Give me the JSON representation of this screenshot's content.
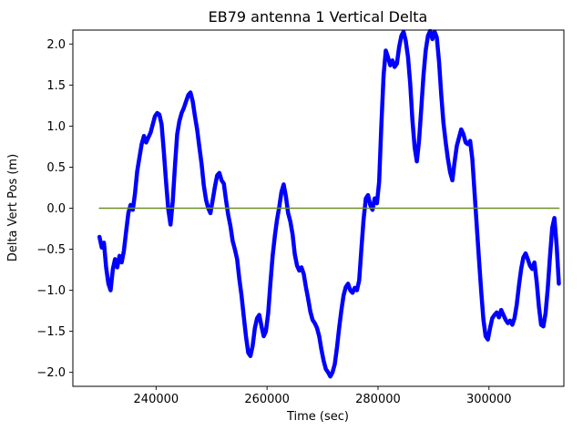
{
  "figure": {
    "background": "#ffffff"
  },
  "chart_data": {
    "type": "line",
    "title": "EB79 antenna 1 Vertical Delta",
    "xlabel": "Time (sec)",
    "ylabel": "Delta Vert Pos (m)",
    "grid": false,
    "legend_visible": false,
    "x_axis": {
      "lim": [
        225000,
        313500
      ],
      "ticks": [
        {
          "v": 240000,
          "label": "240000"
        },
        {
          "v": 260000,
          "label": "260000"
        },
        {
          "v": 280000,
          "label": "280000"
        },
        {
          "v": 300000,
          "label": "300000"
        }
      ]
    },
    "y_axis": {
      "lim": [
        -2.17,
        2.17
      ],
      "ticks": [
        {
          "v": -2.0,
          "label": "−2.0"
        },
        {
          "v": -1.5,
          "label": "−1.5"
        },
        {
          "v": -1.0,
          "label": "−1.0"
        },
        {
          "v": -0.5,
          "label": "−0.5"
        },
        {
          "v": 0.0,
          "label": "0.0"
        },
        {
          "v": 0.5,
          "label": "0.5"
        },
        {
          "v": 1.0,
          "label": "1.0"
        },
        {
          "v": 1.5,
          "label": "1.5"
        },
        {
          "v": 2.0,
          "label": "2.0"
        }
      ]
    },
    "series": [
      {
        "name": "antenna-1-vertical-delta",
        "color": "#0000ff",
        "linewidth": 4.5,
        "points": [
          [
            229800,
            -0.35
          ],
          [
            230200,
            -0.48
          ],
          [
            230600,
            -0.42
          ],
          [
            231000,
            -0.72
          ],
          [
            231400,
            -0.92
          ],
          [
            231800,
            -1.0
          ],
          [
            232200,
            -0.74
          ],
          [
            232600,
            -0.62
          ],
          [
            233000,
            -0.72
          ],
          [
            233400,
            -0.58
          ],
          [
            233800,
            -0.66
          ],
          [
            234200,
            -0.52
          ],
          [
            234600,
            -0.28
          ],
          [
            235000,
            -0.06
          ],
          [
            235400,
            0.04
          ],
          [
            235800,
            -0.02
          ],
          [
            236200,
            0.18
          ],
          [
            236600,
            0.45
          ],
          [
            237000,
            0.62
          ],
          [
            237400,
            0.78
          ],
          [
            237800,
            0.88
          ],
          [
            238200,
            0.8
          ],
          [
            238600,
            0.86
          ],
          [
            239000,
            0.92
          ],
          [
            239400,
            1.02
          ],
          [
            239800,
            1.12
          ],
          [
            240200,
            1.16
          ],
          [
            240600,
            1.14
          ],
          [
            241000,
            1.02
          ],
          [
            241400,
            0.68
          ],
          [
            241800,
            0.32
          ],
          [
            242200,
            -0.02
          ],
          [
            242600,
            -0.2
          ],
          [
            243000,
            0.08
          ],
          [
            243400,
            0.52
          ],
          [
            243800,
            0.9
          ],
          [
            244200,
            1.06
          ],
          [
            244600,
            1.16
          ],
          [
            245000,
            1.22
          ],
          [
            245400,
            1.3
          ],
          [
            245800,
            1.38
          ],
          [
            246200,
            1.41
          ],
          [
            246600,
            1.3
          ],
          [
            247000,
            1.12
          ],
          [
            247400,
            0.96
          ],
          [
            247800,
            0.74
          ],
          [
            248200,
            0.54
          ],
          [
            248600,
            0.28
          ],
          [
            249000,
            0.1
          ],
          [
            249400,
            0.0
          ],
          [
            249800,
            -0.06
          ],
          [
            250200,
            0.1
          ],
          [
            250600,
            0.26
          ],
          [
            251000,
            0.4
          ],
          [
            251400,
            0.43
          ],
          [
            251800,
            0.34
          ],
          [
            252200,
            0.3
          ],
          [
            252600,
            0.1
          ],
          [
            253000,
            -0.08
          ],
          [
            253400,
            -0.22
          ],
          [
            253800,
            -0.4
          ],
          [
            254200,
            -0.5
          ],
          [
            254600,
            -0.62
          ],
          [
            255000,
            -0.86
          ],
          [
            255400,
            -1.06
          ],
          [
            255800,
            -1.32
          ],
          [
            256200,
            -1.56
          ],
          [
            256600,
            -1.76
          ],
          [
            257000,
            -1.8
          ],
          [
            257400,
            -1.68
          ],
          [
            257800,
            -1.46
          ],
          [
            258200,
            -1.34
          ],
          [
            258600,
            -1.3
          ],
          [
            259000,
            -1.44
          ],
          [
            259400,
            -1.56
          ],
          [
            259800,
            -1.5
          ],
          [
            260200,
            -1.28
          ],
          [
            260600,
            -0.92
          ],
          [
            261000,
            -0.58
          ],
          [
            261400,
            -0.34
          ],
          [
            261800,
            -0.14
          ],
          [
            262200,
            0.02
          ],
          [
            262600,
            0.2
          ],
          [
            263000,
            0.29
          ],
          [
            263400,
            0.14
          ],
          [
            263800,
            -0.06
          ],
          [
            264200,
            -0.16
          ],
          [
            264600,
            -0.32
          ],
          [
            265000,
            -0.56
          ],
          [
            265400,
            -0.7
          ],
          [
            265800,
            -0.76
          ],
          [
            266200,
            -0.72
          ],
          [
            266600,
            -0.8
          ],
          [
            267000,
            -0.96
          ],
          [
            267400,
            -1.1
          ],
          [
            267800,
            -1.26
          ],
          [
            268200,
            -1.36
          ],
          [
            268600,
            -1.4
          ],
          [
            269000,
            -1.46
          ],
          [
            269400,
            -1.56
          ],
          [
            269800,
            -1.72
          ],
          [
            270200,
            -1.86
          ],
          [
            270600,
            -1.96
          ],
          [
            271000,
            -2.0
          ],
          [
            271400,
            -2.05
          ],
          [
            271800,
            -2.0
          ],
          [
            272200,
            -1.9
          ],
          [
            272600,
            -1.7
          ],
          [
            273000,
            -1.46
          ],
          [
            273400,
            -1.24
          ],
          [
            273800,
            -1.06
          ],
          [
            274200,
            -0.96
          ],
          [
            274600,
            -0.92
          ],
          [
            275000,
            -1.0
          ],
          [
            275400,
            -1.03
          ],
          [
            275800,
            -0.97
          ],
          [
            276200,
            -1.0
          ],
          [
            276600,
            -0.88
          ],
          [
            277000,
            -0.5
          ],
          [
            277400,
            -0.14
          ],
          [
            277800,
            0.12
          ],
          [
            278200,
            0.16
          ],
          [
            278600,
            0.04
          ],
          [
            279000,
            -0.02
          ],
          [
            279400,
            0.12
          ],
          [
            279800,
            0.06
          ],
          [
            280200,
            0.32
          ],
          [
            280600,
            1.0
          ],
          [
            281000,
            1.62
          ],
          [
            281400,
            1.92
          ],
          [
            281800,
            1.84
          ],
          [
            282200,
            1.74
          ],
          [
            282600,
            1.8
          ],
          [
            283000,
            1.72
          ],
          [
            283400,
            1.76
          ],
          [
            283800,
            1.96
          ],
          [
            284200,
            2.1
          ],
          [
            284600,
            2.15
          ],
          [
            285000,
            2.04
          ],
          [
            285400,
            1.84
          ],
          [
            285800,
            1.52
          ],
          [
            286200,
            1.08
          ],
          [
            286600,
            0.74
          ],
          [
            287000,
            0.57
          ],
          [
            287400,
            0.82
          ],
          [
            287800,
            1.22
          ],
          [
            288200,
            1.62
          ],
          [
            288600,
            1.92
          ],
          [
            289000,
            2.1
          ],
          [
            289400,
            2.16
          ],
          [
            289800,
            2.06
          ],
          [
            290200,
            2.15
          ],
          [
            290600,
            2.08
          ],
          [
            291000,
            1.78
          ],
          [
            291400,
            1.38
          ],
          [
            291800,
            1.04
          ],
          [
            292200,
            0.8
          ],
          [
            292600,
            0.6
          ],
          [
            293000,
            0.44
          ],
          [
            293400,
            0.34
          ],
          [
            293800,
            0.56
          ],
          [
            294200,
            0.76
          ],
          [
            294600,
            0.86
          ],
          [
            295000,
            0.96
          ],
          [
            295400,
            0.9
          ],
          [
            295800,
            0.8
          ],
          [
            296200,
            0.78
          ],
          [
            296600,
            0.82
          ],
          [
            297000,
            0.6
          ],
          [
            297400,
            0.2
          ],
          [
            297800,
            -0.22
          ],
          [
            298200,
            -0.62
          ],
          [
            298600,
            -1.02
          ],
          [
            299000,
            -1.36
          ],
          [
            299400,
            -1.56
          ],
          [
            299800,
            -1.6
          ],
          [
            300200,
            -1.46
          ],
          [
            300600,
            -1.34
          ],
          [
            301000,
            -1.3
          ],
          [
            301400,
            -1.27
          ],
          [
            301800,
            -1.33
          ],
          [
            302200,
            -1.24
          ],
          [
            302600,
            -1.3
          ],
          [
            303000,
            -1.36
          ],
          [
            303400,
            -1.4
          ],
          [
            303800,
            -1.37
          ],
          [
            304200,
            -1.42
          ],
          [
            304600,
            -1.34
          ],
          [
            305000,
            -1.18
          ],
          [
            305400,
            -0.94
          ],
          [
            305800,
            -0.74
          ],
          [
            306200,
            -0.6
          ],
          [
            306600,
            -0.55
          ],
          [
            307000,
            -0.62
          ],
          [
            307400,
            -0.7
          ],
          [
            307800,
            -0.74
          ],
          [
            308200,
            -0.66
          ],
          [
            308600,
            -0.9
          ],
          [
            309000,
            -1.2
          ],
          [
            309400,
            -1.42
          ],
          [
            309800,
            -1.44
          ],
          [
            310200,
            -1.28
          ],
          [
            310600,
            -0.98
          ],
          [
            311000,
            -0.58
          ],
          [
            311400,
            -0.24
          ],
          [
            311800,
            -0.12
          ],
          [
            312200,
            -0.46
          ],
          [
            312600,
            -0.92
          ]
        ]
      },
      {
        "name": "zero-reference-line",
        "color": "#6b8e23",
        "linewidth": 1.6,
        "points": [
          [
            229800,
            0
          ],
          [
            312600,
            0
          ]
        ]
      }
    ]
  }
}
